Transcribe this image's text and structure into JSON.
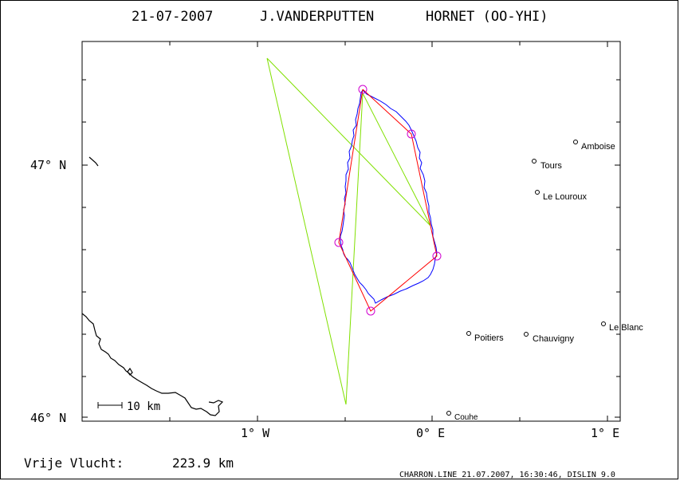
{
  "header": {
    "date": "21-07-2007",
    "pilot": "J.VANDERPUTTEN",
    "glider": "HORNET (OO-YHI)"
  },
  "axes": {
    "lat_labels": [
      "47° N",
      "46° N"
    ],
    "lon_labels": [
      "1° W",
      "0° E",
      "1° E"
    ]
  },
  "scale_bar": {
    "label": "10 km"
  },
  "towns": [
    {
      "name": "Amboise"
    },
    {
      "name": "Tours"
    },
    {
      "name": "Le Louroux"
    },
    {
      "name": "Le Blanc"
    },
    {
      "name": "Poitiers"
    },
    {
      "name": "Chauvigny"
    },
    {
      "name": "Couhe"
    }
  ],
  "footer": {
    "distance_label": "Vrije Vlucht:",
    "distance_value": "223.9 km",
    "file_info": "CHARRON.LINE 21.07.2007, 16:30:46, DISLIN 9.0"
  },
  "colors": {
    "track": "#0000ff",
    "optimized_route": "#ff0000",
    "declared_task": "#80e000",
    "turnpoint": "#d000d0",
    "coastline": "#000000"
  }
}
